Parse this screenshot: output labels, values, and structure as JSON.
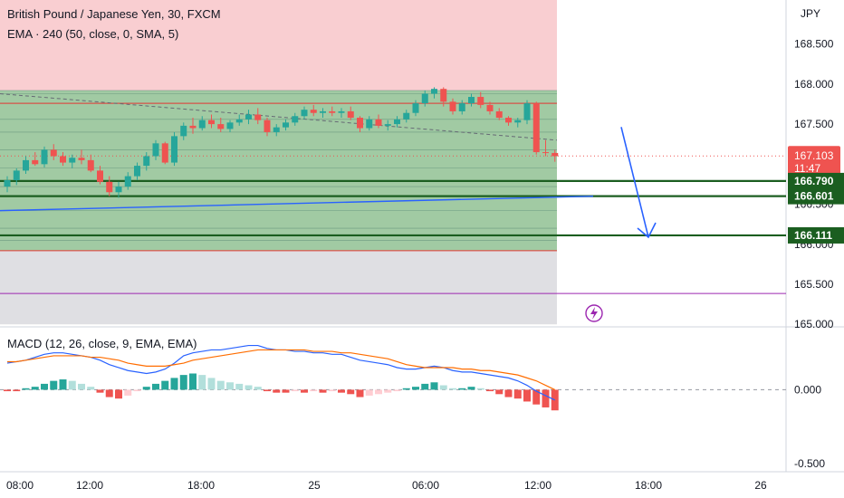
{
  "header": {
    "title": "British Pound / Japanese Yen, 30, FXCM",
    "indicator": "EMA · 240 (50, close, 0, SMA, 5)",
    "currency": "JPY"
  },
  "macd_legend": "MACD (12, 26, close, 9, EMA, EMA)",
  "colors": {
    "up": "#26a69a",
    "down": "#ef5350",
    "ema": "#2962ff",
    "macd": "#2962ff",
    "signal": "#ff6d00",
    "dark_green_line": "#1b5e20",
    "purple_line": "#9c27b0",
    "upper_zone": "#f8c6c9",
    "green_zone": "#9cc79e",
    "lower_zone": "#d9d9de"
  },
  "chart_data": [
    {
      "type": "candlestick",
      "title": "British Pound / Japanese Yen, 30, FXCM",
      "ylabel": "JPY",
      "ylim": [
        164.98,
        169.05
      ],
      "y_ticks": [
        "168.500",
        "168.000",
        "167.500",
        "167.000",
        "166.500",
        "166.000",
        "165.500",
        "165.000"
      ],
      "x_ticks": [
        "08:00",
        "12:00",
        "18:00",
        "25",
        "06:00",
        "12:00",
        "18:00",
        "26"
      ],
      "price_labels": [
        {
          "value": "167.103",
          "sub": "11:47",
          "kind": "last"
        },
        {
          "value": "166.790",
          "kind": "level"
        },
        {
          "value": "166.601",
          "kind": "level"
        },
        {
          "value": "166.111",
          "kind": "level"
        }
      ],
      "zones": [
        {
          "from": 167.92,
          "to": 169.05,
          "color": "upper"
        },
        {
          "from": 165.92,
          "to": 167.92,
          "color": "green"
        },
        {
          "from": 165.0,
          "to": 165.92,
          "color": "lower"
        }
      ],
      "horizontal_levels": [
        166.79,
        166.601,
        166.111,
        165.385
      ],
      "series": [
        {
          "name": "GBPJPY",
          "candles": [
            [
              166.72,
              166.85,
              166.65,
              166.8
            ],
            [
              166.8,
              166.95,
              166.74,
              166.92
            ],
            [
              166.92,
              167.1,
              166.88,
              167.05
            ],
            [
              167.05,
              167.15,
              166.98,
              167.0
            ],
            [
              167.0,
              167.22,
              166.96,
              167.18
            ],
            [
              167.18,
              167.25,
              167.05,
              167.1
            ],
            [
              167.1,
              167.15,
              166.98,
              167.02
            ],
            [
              167.02,
              167.12,
              166.95,
              167.08
            ],
            [
              167.08,
              167.18,
              167.0,
              167.05
            ],
            [
              167.05,
              167.12,
              166.9,
              166.92
            ],
            [
              166.92,
              166.98,
              166.75,
              166.78
            ],
            [
              166.78,
              166.85,
              166.6,
              166.65
            ],
            [
              166.65,
              166.78,
              166.58,
              166.72
            ],
            [
              166.72,
              166.9,
              166.68,
              166.85
            ],
            [
              166.85,
              167.02,
              166.8,
              166.98
            ],
            [
              166.98,
              167.15,
              166.92,
              167.1
            ],
            [
              167.1,
              167.3,
              167.05,
              167.26
            ],
            [
              167.26,
              167.28,
              167.0,
              167.02
            ],
            [
              167.02,
              167.4,
              166.98,
              167.35
            ],
            [
              167.35,
              167.52,
              167.3,
              167.48
            ],
            [
              167.48,
              167.58,
              167.38,
              167.45
            ],
            [
              167.45,
              167.6,
              167.42,
              167.55
            ],
            [
              167.55,
              167.62,
              167.45,
              167.5
            ],
            [
              167.5,
              167.58,
              167.4,
              167.44
            ],
            [
              167.44,
              167.55,
              167.4,
              167.52
            ],
            [
              167.52,
              167.62,
              167.48,
              167.56
            ],
            [
              167.56,
              167.68,
              167.5,
              167.62
            ],
            [
              167.62,
              167.7,
              167.5,
              167.55
            ],
            [
              167.55,
              167.58,
              167.35,
              167.4
            ],
            [
              167.4,
              167.5,
              167.35,
              167.46
            ],
            [
              167.46,
              167.56,
              167.42,
              167.52
            ],
            [
              167.52,
              167.64,
              167.48,
              167.6
            ],
            [
              167.6,
              167.72,
              167.56,
              167.68
            ],
            [
              167.68,
              167.74,
              167.6,
              167.64
            ],
            [
              167.64,
              167.7,
              167.58,
              167.66
            ],
            [
              167.66,
              167.72,
              167.6,
              167.64
            ],
            [
              167.64,
              167.7,
              167.58,
              167.66
            ],
            [
              167.66,
              167.72,
              167.55,
              167.58
            ],
            [
              167.58,
              167.6,
              167.4,
              167.45
            ],
            [
              167.45,
              167.6,
              167.42,
              167.56
            ],
            [
              167.56,
              167.62,
              167.45,
              167.48
            ],
            [
              167.48,
              167.55,
              167.42,
              167.5
            ],
            [
              167.5,
              167.6,
              167.46,
              167.56
            ],
            [
              167.56,
              167.68,
              167.52,
              167.64
            ],
            [
              167.64,
              167.8,
              167.6,
              167.76
            ],
            [
              167.76,
              167.92,
              167.72,
              167.88
            ],
            [
              167.88,
              167.96,
              167.82,
              167.94
            ],
            [
              167.94,
              167.96,
              167.72,
              167.78
            ],
            [
              167.78,
              167.82,
              167.62,
              167.66
            ],
            [
              167.66,
              167.8,
              167.62,
              167.76
            ],
            [
              167.76,
              167.88,
              167.72,
              167.84
            ],
            [
              167.84,
              167.9,
              167.7,
              167.74
            ],
            [
              167.74,
              167.78,
              167.62,
              167.66
            ],
            [
              167.66,
              167.7,
              167.55,
              167.58
            ],
            [
              167.58,
              167.6,
              167.48,
              167.52
            ],
            [
              167.52,
              167.58,
              167.46,
              167.55
            ],
            [
              167.55,
              167.8,
              167.5,
              167.76
            ],
            [
              167.76,
              167.78,
              167.12,
              167.15
            ],
            [
              167.15,
              167.3,
              167.1,
              167.14
            ],
            [
              167.14,
              167.18,
              167.03,
              167.1
            ]
          ]
        },
        {
          "name": "EMA",
          "y_start": 166.42,
          "y_end": 166.6
        },
        {
          "name": "dashed MA",
          "y_start": 167.88,
          "y_end": 167.3
        }
      ],
      "annotations": [
        {
          "type": "arrow",
          "direction": "down",
          "from": 167.35,
          "to": 166.111
        }
      ]
    },
    {
      "type": "bar",
      "title": "MACD (12, 26, close, 9, EMA, EMA)",
      "ylim": [
        -0.55,
        0.42
      ],
      "y_ticks": [
        "0.000",
        "-0.500"
      ],
      "histogram": [
        -0.01,
        -0.01,
        0.01,
        0.02,
        0.04,
        0.06,
        0.07,
        0.06,
        0.04,
        0.02,
        -0.02,
        -0.05,
        -0.06,
        -0.04,
        -0.01,
        0.02,
        0.04,
        0.06,
        0.08,
        0.1,
        0.11,
        0.1,
        0.08,
        0.06,
        0.05,
        0.04,
        0.03,
        0.02,
        -0.01,
        -0.02,
        -0.02,
        -0.01,
        -0.02,
        -0.01,
        -0.02,
        -0.01,
        -0.02,
        -0.03,
        -0.05,
        -0.04,
        -0.03,
        -0.02,
        -0.01,
        0.01,
        0.02,
        0.04,
        0.05,
        0.03,
        0.01,
        0.01,
        0.02,
        0.01,
        -0.01,
        -0.03,
        -0.05,
        -0.06,
        -0.08,
        -0.1,
        -0.12,
        -0.14
      ],
      "macd": [
        0.18,
        0.19,
        0.2,
        0.22,
        0.24,
        0.25,
        0.25,
        0.24,
        0.23,
        0.22,
        0.2,
        0.17,
        0.15,
        0.13,
        0.12,
        0.11,
        0.12,
        0.14,
        0.18,
        0.23,
        0.25,
        0.26,
        0.27,
        0.27,
        0.28,
        0.29,
        0.3,
        0.3,
        0.28,
        0.27,
        0.27,
        0.26,
        0.26,
        0.25,
        0.25,
        0.24,
        0.24,
        0.22,
        0.2,
        0.19,
        0.18,
        0.17,
        0.15,
        0.14,
        0.14,
        0.15,
        0.16,
        0.15,
        0.13,
        0.12,
        0.12,
        0.11,
        0.1,
        0.09,
        0.08,
        0.06,
        0.03,
        -0.01,
        -0.04,
        -0.07
      ],
      "signal": [
        0.19,
        0.19,
        0.2,
        0.21,
        0.22,
        0.23,
        0.23,
        0.23,
        0.23,
        0.22,
        0.22,
        0.21,
        0.2,
        0.18,
        0.17,
        0.16,
        0.16,
        0.16,
        0.17,
        0.18,
        0.2,
        0.21,
        0.22,
        0.23,
        0.24,
        0.25,
        0.26,
        0.27,
        0.27,
        0.27,
        0.27,
        0.27,
        0.27,
        0.26,
        0.26,
        0.26,
        0.25,
        0.25,
        0.24,
        0.23,
        0.22,
        0.21,
        0.19,
        0.17,
        0.16,
        0.15,
        0.15,
        0.15,
        0.15,
        0.14,
        0.14,
        0.13,
        0.13,
        0.12,
        0.11,
        0.1,
        0.08,
        0.06,
        0.03,
        0.0
      ]
    }
  ]
}
